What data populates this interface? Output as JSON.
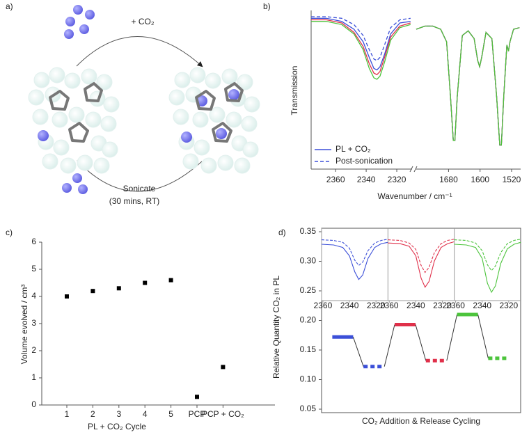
{
  "diagram": {
    "panel_label": "a)",
    "top_label": "+ CO₂",
    "bottom_label": "Sonicate",
    "bottom_sublabel": "(30 mins, RT)"
  },
  "chart_data": [
    {
      "type": "line",
      "panel_label": "b)",
      "y_label": "Transmission",
      "x_label": "Wavenumber / cm⁻¹",
      "xlim": [
        2376,
        1497
      ],
      "xbreak": [
        2310,
        1762
      ],
      "ylim": [
        0,
        1
      ],
      "xticks": [
        2360,
        2340,
        2320,
        1680,
        1600,
        1520
      ],
      "legend": "lower left",
      "x": [
        2376,
        2366,
        2356,
        2348,
        2342,
        2338,
        2335,
        2333,
        2331,
        2328,
        2324,
        2318,
        2311,
        1762,
        1740,
        1720,
        1700,
        1685,
        1675,
        1668,
        1664,
        1658,
        1645,
        1630,
        1615,
        1606,
        1601,
        1596,
        1585,
        1570,
        1558,
        1550,
        1546,
        1540,
        1532,
        1528,
        1524,
        1515,
        1500
      ],
      "series": [
        {
          "name": "PL + CO₂",
          "color": "#3b4fd8",
          "dash": false,
          "values": [
            0.95,
            0.95,
            0.93,
            0.88,
            0.8,
            0.7,
            0.63,
            0.62,
            0.64,
            0.72,
            0.85,
            0.92,
            0.93,
            0.88,
            0.9,
            0.9,
            0.88,
            0.8,
            0.45,
            0.17,
            0.17,
            0.45,
            0.84,
            0.87,
            0.82,
            0.68,
            0.64,
            0.7,
            0.86,
            0.82,
            0.45,
            0.14,
            0.14,
            0.45,
            0.78,
            0.74,
            0.8,
            0.88,
            0.89
          ]
        },
        {
          "name": "Post-sonication",
          "color": "#3b4fd8",
          "dash": true,
          "values": [
            0.96,
            0.96,
            0.95,
            0.91,
            0.84,
            0.75,
            0.69,
            0.68,
            0.7,
            0.78,
            0.89,
            0.94,
            0.95,
            0.88,
            0.9,
            0.9,
            0.88,
            0.8,
            0.45,
            0.17,
            0.17,
            0.45,
            0.84,
            0.87,
            0.82,
            0.68,
            0.64,
            0.7,
            0.86,
            0.82,
            0.45,
            0.14,
            0.14,
            0.45,
            0.78,
            0.74,
            0.8,
            0.88,
            0.89
          ]
        },
        {
          "color": "#e0304a",
          "dash": false,
          "values": [
            0.94,
            0.94,
            0.92,
            0.86,
            0.77,
            0.66,
            0.6,
            0.59,
            0.61,
            0.7,
            0.83,
            0.9,
            0.92,
            0.88,
            0.9,
            0.9,
            0.88,
            0.8,
            0.45,
            0.17,
            0.17,
            0.45,
            0.84,
            0.87,
            0.82,
            0.68,
            0.64,
            0.7,
            0.86,
            0.82,
            0.45,
            0.14,
            0.14,
            0.45,
            0.78,
            0.74,
            0.8,
            0.88,
            0.89
          ]
        },
        {
          "color": "#4cc43c",
          "dash": false,
          "values": [
            0.93,
            0.93,
            0.91,
            0.85,
            0.75,
            0.63,
            0.57,
            0.56,
            0.58,
            0.67,
            0.81,
            0.89,
            0.91,
            0.88,
            0.9,
            0.9,
            0.88,
            0.8,
            0.45,
            0.17,
            0.17,
            0.45,
            0.84,
            0.87,
            0.82,
            0.68,
            0.64,
            0.7,
            0.86,
            0.82,
            0.45,
            0.14,
            0.14,
            0.45,
            0.78,
            0.74,
            0.8,
            0.88,
            0.89
          ]
        }
      ]
    },
    {
      "type": "scatter",
      "panel_label": "c)",
      "y_label": "Volume evolved / cm³",
      "x_label": "PL + CO₂ Cycle",
      "categories": [
        "1",
        "2",
        "3",
        "4",
        "5",
        "PCP",
        "PCP + CO₂"
      ],
      "values": [
        4.0,
        4.2,
        4.3,
        4.5,
        4.6,
        0.3,
        1.4
      ],
      "color": "#000000",
      "ylim": [
        0,
        6
      ],
      "yticks": [
        0,
        1,
        2,
        3,
        4,
        5,
        6
      ]
    },
    {
      "type": "level",
      "panel_label": "d)",
      "y_label": "Relative Quantity CO₂ in PL",
      "x_label": "CO₂ Addition & Release Cycling",
      "values": [
        0.172,
        0.122,
        0.193,
        0.132,
        0.21,
        0.136
      ],
      "colors": [
        "#3b4fd8",
        "#3b4fd8",
        "#e0304a",
        "#e0304a",
        "#4cc43c",
        "#4cc43c"
      ],
      "dash": [
        false,
        true,
        false,
        true,
        false,
        true
      ],
      "ylim": [
        0.05,
        0.35
      ],
      "yticks": [
        0.05,
        {
          "value": 0.1,
          "label": "0.10"
        },
        0.15,
        {
          "value": 0.2,
          "label": "0.20"
        },
        0.25,
        {
          "value": 0.3,
          "label": "0.30"
        },
        0.35
      ],
      "insets": [
        {
          "xlim": [
            2361,
            2311
          ],
          "ylim": [
            0,
            1
          ],
          "xticks": [
            2360,
            2340,
            2320
          ],
          "x": [
            2361,
            2352,
            2345,
            2340,
            2336,
            2333,
            2330,
            2326,
            2321,
            2316,
            2311
          ],
          "series": [
            {
              "color": "#3b4fd8",
              "dash": false,
              "values": [
                0.88,
                0.87,
                0.83,
                0.7,
                0.45,
                0.33,
                0.4,
                0.66,
                0.83,
                0.89,
                0.91
              ]
            },
            {
              "color": "#3b4fd8",
              "dash": true,
              "values": [
                0.95,
                0.94,
                0.91,
                0.82,
                0.63,
                0.55,
                0.6,
                0.78,
                0.9,
                0.94,
                0.96
              ]
            }
          ]
        },
        {
          "xlim": [
            2361,
            2311
          ],
          "ylim": [
            0,
            1
          ],
          "xticks": [
            2360,
            2340,
            2320
          ],
          "x": [
            2361,
            2352,
            2345,
            2340,
            2336,
            2333,
            2330,
            2326,
            2321,
            2316,
            2311
          ],
          "series": [
            {
              "color": "#e0304a",
              "dash": false,
              "values": [
                0.9,
                0.89,
                0.85,
                0.7,
                0.35,
                0.21,
                0.3,
                0.62,
                0.83,
                0.89,
                0.92
              ]
            },
            {
              "color": "#e0304a",
              "dash": true,
              "values": [
                0.95,
                0.94,
                0.9,
                0.8,
                0.55,
                0.44,
                0.52,
                0.75,
                0.89,
                0.94,
                0.96
              ]
            }
          ]
        },
        {
          "xlim": [
            2361,
            2311
          ],
          "ylim": [
            0,
            1
          ],
          "xticks": [
            2360,
            2340,
            2320
          ],
          "x": [
            2361,
            2352,
            2345,
            2340,
            2336,
            2333,
            2330,
            2326,
            2321,
            2316,
            2311
          ],
          "series": [
            {
              "color": "#4cc43c",
              "dash": false,
              "values": [
                0.88,
                0.87,
                0.83,
                0.66,
                0.27,
                0.13,
                0.23,
                0.58,
                0.81,
                0.88,
                0.91
              ]
            },
            {
              "color": "#4cc43c",
              "dash": true,
              "values": [
                0.95,
                0.94,
                0.9,
                0.78,
                0.56,
                0.47,
                0.54,
                0.75,
                0.89,
                0.94,
                0.96
              ]
            }
          ]
        }
      ]
    }
  ]
}
